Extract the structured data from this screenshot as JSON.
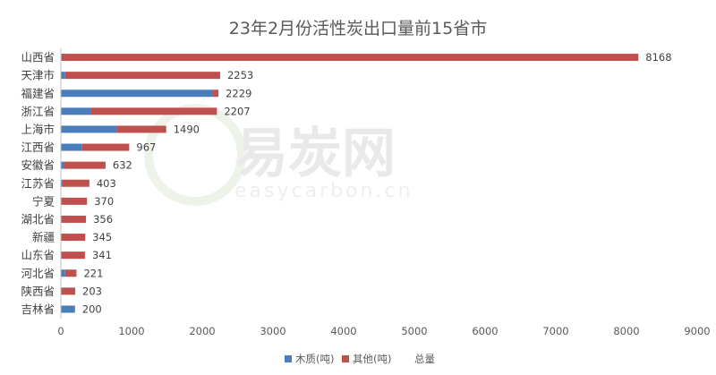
{
  "chart_data": {
    "type": "bar",
    "orientation": "horizontal",
    "stacked": true,
    "title": "23年2月份活性炭出口量前15省市",
    "categories": [
      "山西省",
      "天津市",
      "福建省",
      "浙江省",
      "上海市",
      "江西省",
      "安徽省",
      "江苏省",
      "宁夏",
      "湖北省",
      "新疆",
      "山东省",
      "河北省",
      "陕西省",
      "吉林省"
    ],
    "series": [
      {
        "name": "木质(吨)",
        "color": "#4a7ebb",
        "values": [
          10,
          60,
          2140,
          430,
          790,
          300,
          50,
          20,
          0,
          0,
          0,
          0,
          60,
          0,
          200
        ]
      },
      {
        "name": "其他(吨)",
        "color": "#c0504d",
        "values": [
          8158,
          2193,
          89,
          1777,
          700,
          667,
          582,
          383,
          370,
          356,
          345,
          341,
          161,
          203,
          0
        ]
      }
    ],
    "totals_label": "总量",
    "totals": [
      8168,
      2253,
      2229,
      2207,
      1490,
      967,
      632,
      403,
      370,
      356,
      345,
      341,
      221,
      203,
      200
    ],
    "xlim": [
      0,
      9000
    ],
    "xticks": [
      "0",
      "1000",
      "2000",
      "3000",
      "4000",
      "5000",
      "6000",
      "7000",
      "8000",
      "9000"
    ],
    "grid": false,
    "legend_position": "bottom"
  },
  "watermark": {
    "brand": "易炭网",
    "url": "easycarbon.cn"
  }
}
